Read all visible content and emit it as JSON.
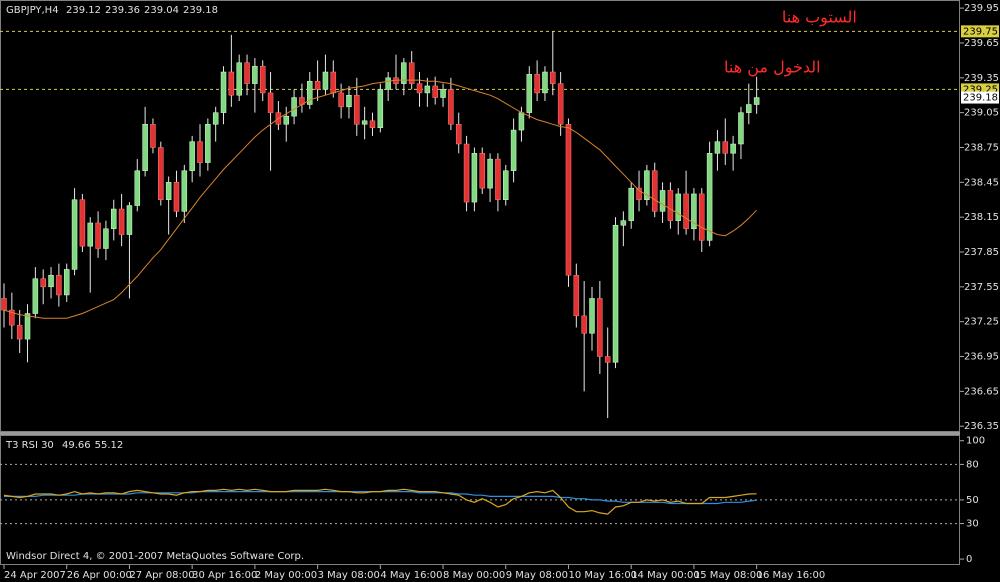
{
  "chart_data": [
    {
      "type": "candlestick",
      "title": "GBPJPY,H4",
      "categories": [
        "24 Apr 2007",
        null,
        null,
        null,
        null,
        null,
        null,
        null,
        "26 Apr 00:00",
        null,
        null,
        null,
        null,
        null,
        null,
        null,
        "27 Apr 08:00",
        null,
        null,
        null,
        null,
        null,
        null,
        null,
        "30 Apr 16:00",
        null,
        null,
        null,
        null,
        null,
        null,
        null,
        "2 May 00:00",
        null,
        null,
        null,
        null,
        null,
        null,
        null,
        "3 May 08:00",
        null,
        null,
        null,
        null,
        null,
        null,
        null,
        "4 May 16:00",
        null,
        null,
        null,
        null,
        null,
        null,
        null,
        "8 May 00:00",
        null,
        null,
        null,
        null,
        null,
        null,
        null,
        "9 May 08:00",
        null,
        null,
        null,
        null,
        null,
        null,
        null,
        "10 May 16:00",
        null,
        null,
        null,
        null,
        null,
        null,
        null,
        "14 May 00:00",
        null,
        null,
        null,
        null,
        null,
        null,
        null,
        "15 May 08:00",
        null,
        null,
        null,
        null,
        null,
        null,
        null,
        "16 May 16:00"
      ],
      "open": [
        237.45,
        237.35,
        237.22,
        237.1,
        237.32,
        237.62,
        237.55,
        237.65,
        237.48,
        237.7,
        238.3,
        237.9,
        238.1,
        237.88,
        238.05,
        238.22,
        238.0,
        238.25,
        238.55,
        238.95,
        238.75,
        238.3,
        238.45,
        238.2,
        238.55,
        238.8,
        238.62,
        238.95,
        239.05,
        239.4,
        239.2,
        239.48,
        239.3,
        239.45,
        239.22,
        239.05,
        238.95,
        239.02,
        239.18,
        239.12,
        239.32,
        239.25,
        239.4,
        239.22,
        239.1,
        239.2,
        238.95,
        238.98,
        238.92,
        239.25,
        239.35,
        239.3,
        239.48,
        239.3,
        239.22,
        239.28,
        239.18,
        239.25,
        238.95,
        238.78,
        238.28,
        238.7,
        238.4,
        238.65,
        238.3,
        238.55,
        238.9,
        239.05,
        239.38,
        239.22,
        239.4,
        239.3,
        238.95,
        237.65,
        237.3,
        237.15,
        237.45,
        236.95,
        236.9,
        238.08,
        238.12,
        238.4,
        238.3,
        238.55,
        238.2,
        238.38,
        238.12,
        238.35,
        238.05,
        238.35,
        237.95,
        238.7,
        238.8,
        238.7,
        238.78,
        239.05,
        239.12
      ],
      "high": [
        237.58,
        237.5,
        237.35,
        237.4,
        237.72,
        237.7,
        237.72,
        237.75,
        237.75,
        238.4,
        238.35,
        238.15,
        238.2,
        238.12,
        238.3,
        238.35,
        238.28,
        238.65,
        239.1,
        239.0,
        238.8,
        238.5,
        238.55,
        238.6,
        238.85,
        238.95,
        239.0,
        239.1,
        239.45,
        239.72,
        239.55,
        239.55,
        239.52,
        239.5,
        239.4,
        239.15,
        239.1,
        239.25,
        239.3,
        239.4,
        239.5,
        239.55,
        239.5,
        239.3,
        239.28,
        239.35,
        239.1,
        239.05,
        239.3,
        239.4,
        239.55,
        239.52,
        239.58,
        239.4,
        239.35,
        239.36,
        239.3,
        239.35,
        239.05,
        238.85,
        238.75,
        238.75,
        238.7,
        238.7,
        238.6,
        239.0,
        239.1,
        239.45,
        239.5,
        239.45,
        239.75,
        239.4,
        239.0,
        237.75,
        237.6,
        237.55,
        237.6,
        237.2,
        238.15,
        238.2,
        238.45,
        238.55,
        238.6,
        238.62,
        238.45,
        238.45,
        238.4,
        238.55,
        238.4,
        238.4,
        238.8,
        238.9,
        239.0,
        238.85,
        239.1,
        239.3,
        239.36
      ],
      "low": [
        237.2,
        237.1,
        236.98,
        236.9,
        237.28,
        237.4,
        237.45,
        237.38,
        237.42,
        237.65,
        237.85,
        237.5,
        237.8,
        237.78,
        237.95,
        237.9,
        237.45,
        238.2,
        238.5,
        238.7,
        238.25,
        238.0,
        238.15,
        238.1,
        238.45,
        238.5,
        238.55,
        238.8,
        238.95,
        239.1,
        239.15,
        239.2,
        239.05,
        239.15,
        238.55,
        238.9,
        238.8,
        238.95,
        239.05,
        239.08,
        239.15,
        239.2,
        239.18,
        239.0,
        239.0,
        238.85,
        238.82,
        238.85,
        238.88,
        239.15,
        239.25,
        239.2,
        239.25,
        239.1,
        239.1,
        239.12,
        239.1,
        238.9,
        238.7,
        238.2,
        238.2,
        238.35,
        238.28,
        238.2,
        238.25,
        238.45,
        238.8,
        239.0,
        239.15,
        239.15,
        239.2,
        238.85,
        237.55,
        237.2,
        236.65,
        237.0,
        236.8,
        236.42,
        236.85,
        237.9,
        238.05,
        238.2,
        238.25,
        238.15,
        238.1,
        238.05,
        238.0,
        238.0,
        237.95,
        237.85,
        237.9,
        238.55,
        238.6,
        238.55,
        238.65,
        238.95,
        239.04
      ],
      "close": [
        237.35,
        237.22,
        237.1,
        237.32,
        237.62,
        237.55,
        237.65,
        237.48,
        237.7,
        238.3,
        237.9,
        238.1,
        237.88,
        238.05,
        238.22,
        238.0,
        238.25,
        238.55,
        238.95,
        238.75,
        238.3,
        238.45,
        238.2,
        238.55,
        238.8,
        238.62,
        238.95,
        239.05,
        239.4,
        239.2,
        239.48,
        239.3,
        239.45,
        239.22,
        239.05,
        238.95,
        239.02,
        239.18,
        239.12,
        239.32,
        239.25,
        239.4,
        239.22,
        239.1,
        239.2,
        238.95,
        238.98,
        238.92,
        239.25,
        239.35,
        239.3,
        239.48,
        239.3,
        239.22,
        239.28,
        239.18,
        239.25,
        238.95,
        238.78,
        238.28,
        238.7,
        238.4,
        238.65,
        238.3,
        238.55,
        238.9,
        239.05,
        239.38,
        239.22,
        239.4,
        239.3,
        238.95,
        237.65,
        237.3,
        237.15,
        237.45,
        236.95,
        236.9,
        238.08,
        238.12,
        238.4,
        238.3,
        238.55,
        238.2,
        238.38,
        238.12,
        238.35,
        238.05,
        238.35,
        237.95,
        238.7,
        238.8,
        238.7,
        238.78,
        239.05,
        239.12,
        239.18
      ],
      "overlay": {
        "color": "#d8842a",
        "values": [
          237.35,
          237.33,
          237.31,
          237.3,
          237.29,
          237.28,
          237.28,
          237.28,
          237.28,
          237.3,
          237.32,
          237.35,
          237.38,
          237.41,
          237.44,
          237.5,
          237.57,
          237.64,
          237.72,
          237.8,
          237.87,
          237.96,
          238.05,
          238.14,
          238.23,
          238.32,
          238.4,
          238.48,
          238.56,
          238.63,
          238.7,
          238.77,
          238.84,
          238.9,
          238.95,
          239.0,
          239.04,
          239.08,
          239.12,
          239.16,
          239.18,
          239.2,
          239.22,
          239.24,
          239.26,
          239.27,
          239.28,
          239.3,
          239.31,
          239.32,
          239.33,
          239.33,
          239.33,
          239.33,
          239.32,
          239.32,
          239.31,
          239.3,
          239.28,
          239.26,
          239.24,
          239.22,
          239.2,
          239.17,
          239.13,
          239.09,
          239.05,
          239.02,
          238.99,
          238.97,
          238.95,
          238.93,
          238.92,
          238.88,
          238.83,
          238.78,
          238.73,
          238.66,
          238.59,
          238.52,
          238.45,
          238.38,
          238.34,
          238.3,
          238.26,
          238.22,
          238.18,
          238.14,
          238.1,
          238.06,
          238.03,
          238.0,
          237.99,
          238.03,
          238.08,
          238.14,
          238.21
        ]
      },
      "bull_color": "#80d880",
      "bear_color": "#e23232",
      "levels": [
        239.75,
        239.25
      ],
      "level_color": "#d8d040",
      "annotations": [
        {
          "text": "الستوب هنا",
          "index": 104
        },
        {
          "text": "الدخول من هنا",
          "index": 98
        }
      ],
      "ylim": [
        236.3,
        240.02
      ],
      "yticks": [
        236.35,
        236.65,
        236.95,
        237.25,
        237.55,
        237.85,
        238.15,
        238.45,
        238.75,
        239.05,
        239.35,
        239.65,
        239.95
      ]
    },
    {
      "type": "line",
      "title": "T3 RSI 30",
      "series": [
        {
          "color": "#2f8fe0",
          "values": [
            53,
            53,
            53,
            53,
            53,
            54,
            54,
            54,
            54,
            54,
            55,
            55,
            55,
            55,
            55,
            55,
            55,
            56,
            56,
            56,
            56,
            56,
            56,
            56,
            56,
            57,
            57,
            57,
            57,
            57,
            57,
            57,
            57,
            57,
            57,
            57,
            57,
            57,
            57,
            57,
            57,
            57,
            57,
            57,
            57,
            57,
            57,
            57,
            57,
            57,
            57,
            57,
            57,
            56,
            56,
            56,
            56,
            56,
            55,
            55,
            54,
            54,
            53,
            53,
            53,
            53,
            53,
            53,
            53,
            53,
            53,
            52,
            52,
            51,
            51,
            50,
            50,
            49,
            49,
            48,
            48,
            48,
            48,
            48,
            48,
            47,
            47,
            47,
            47,
            47,
            47,
            47,
            48,
            48,
            48,
            49,
            49.66
          ]
        },
        {
          "color": "#d8a820",
          "values": [
            54,
            53,
            52,
            53,
            55,
            55,
            55,
            54,
            55,
            57,
            55,
            56,
            55,
            56,
            56,
            55,
            57,
            58,
            57,
            56,
            55,
            55,
            54,
            56,
            57,
            57,
            58,
            58,
            59,
            58,
            59,
            58,
            59,
            58,
            57,
            57,
            57,
            58,
            58,
            58,
            58,
            59,
            58,
            57,
            57,
            56,
            56,
            57,
            57,
            58,
            58,
            59,
            58,
            57,
            57,
            57,
            56,
            55,
            54,
            50,
            48,
            51,
            48,
            44,
            46,
            51,
            53,
            56,
            57,
            56,
            58,
            52,
            44,
            40,
            40,
            41,
            39,
            38,
            44,
            45,
            48,
            48,
            50,
            49,
            50,
            48,
            49,
            47,
            47,
            47,
            52,
            52,
            52,
            53,
            54,
            55,
            55.12
          ]
        }
      ],
      "levels": [
        80,
        50,
        30
      ],
      "ylim": [
        -5,
        104
      ],
      "yticks": [
        0,
        30,
        50,
        80,
        100
      ]
    }
  ],
  "footer": "Windsor Direct 4, © 2001-2007 MetaQuotes Software Corp."
}
